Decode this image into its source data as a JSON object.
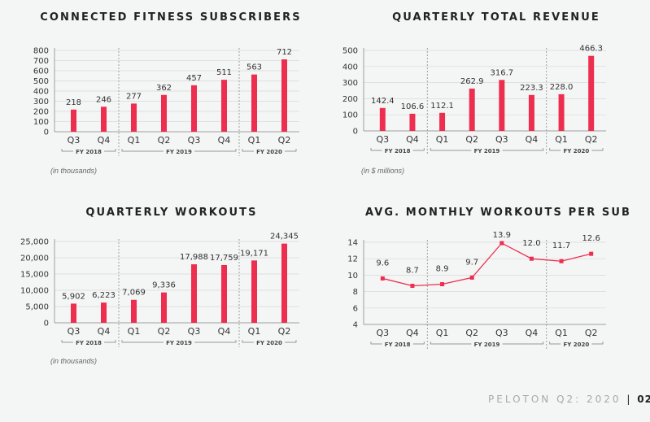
{
  "quarters": [
    "Q3",
    "Q4",
    "Q1",
    "Q2",
    "Q3",
    "Q4",
    "Q1",
    "Q2"
  ],
  "fiscal_groups": [
    "FY 2018",
    "FY 2019",
    "FY 2020"
  ],
  "colors": {
    "bar": "#ee2e4f",
    "axis": "#8a8a8a",
    "grid": "#d9d9d9",
    "divider": "#8a8a8a"
  },
  "footer": {
    "brand": "PELOTON Q2: 2020",
    "separator": "|",
    "page": "02"
  },
  "chart_data": [
    {
      "type": "bar",
      "title": "CONNECTED FITNESS SUBSCRIBERS",
      "note": "(in thousands)",
      "categories": [
        "Q3",
        "Q4",
        "Q1",
        "Q2",
        "Q3",
        "Q4",
        "Q1",
        "Q2"
      ],
      "values": [
        218,
        246,
        277,
        362,
        457,
        511,
        563,
        712
      ],
      "labels": [
        "218",
        "246",
        "277",
        "362",
        "457",
        "511",
        "563",
        "712"
      ],
      "ylim": [
        0,
        800
      ],
      "yticks": [
        0,
        100,
        200,
        300,
        400,
        500,
        600,
        700,
        800
      ],
      "ytick_labels": [
        "0",
        "100",
        "200",
        "300",
        "400",
        "500",
        "600",
        "700",
        "800"
      ]
    },
    {
      "type": "bar",
      "title": "QUARTERLY TOTAL REVENUE",
      "note": "(in $ millions)",
      "categories": [
        "Q3",
        "Q4",
        "Q1",
        "Q2",
        "Q3",
        "Q4",
        "Q1",
        "Q2"
      ],
      "values": [
        142.4,
        106.6,
        112.1,
        262.9,
        316.7,
        223.3,
        228.0,
        466.3
      ],
      "labels": [
        "142.4",
        "106.6",
        "112.1",
        "262.9",
        "316.7",
        "223.3",
        "228.0",
        "466.3"
      ],
      "ylim": [
        0,
        500
      ],
      "yticks": [
        0,
        100,
        200,
        300,
        400,
        500
      ],
      "ytick_labels": [
        "0",
        "100",
        "200",
        "300",
        "400",
        "500"
      ]
    },
    {
      "type": "bar",
      "title": "QUARTERLY WORKOUTS",
      "note": "(in thousands)",
      "categories": [
        "Q3",
        "Q4",
        "Q1",
        "Q2",
        "Q3",
        "Q4",
        "Q1",
        "Q2"
      ],
      "values": [
        5902,
        6223,
        7069,
        9336,
        17988,
        17759,
        19171,
        24345
      ],
      "labels": [
        "5,902",
        "6,223",
        "7,069",
        "9,336",
        "17,988",
        "17,759",
        "19,171",
        "24,345"
      ],
      "ylim": [
        0,
        25000
      ],
      "yticks": [
        0,
        5000,
        10000,
        15000,
        20000,
        25000
      ],
      "ytick_labels": [
        "0",
        "5,000",
        "10,000",
        "15,000",
        "20,000",
        "25,000"
      ]
    },
    {
      "type": "line",
      "title": "AVG. MONTHLY WORKOUTS PER SUB",
      "note": "",
      "categories": [
        "Q3",
        "Q4",
        "Q1",
        "Q2",
        "Q3",
        "Q4",
        "Q1",
        "Q2"
      ],
      "values": [
        9.6,
        8.7,
        8.9,
        9.7,
        13.9,
        12.0,
        11.7,
        12.6
      ],
      "labels": [
        "9.6",
        "8.7",
        "8.9",
        "9.7",
        "13.9",
        "12.0",
        "11.7",
        "12.6"
      ],
      "ylim": [
        4,
        14
      ],
      "yticks": [
        4,
        6,
        8,
        10,
        12,
        14
      ],
      "ytick_labels": [
        "4",
        "6",
        "8",
        "10",
        "12",
        "14"
      ]
    }
  ]
}
